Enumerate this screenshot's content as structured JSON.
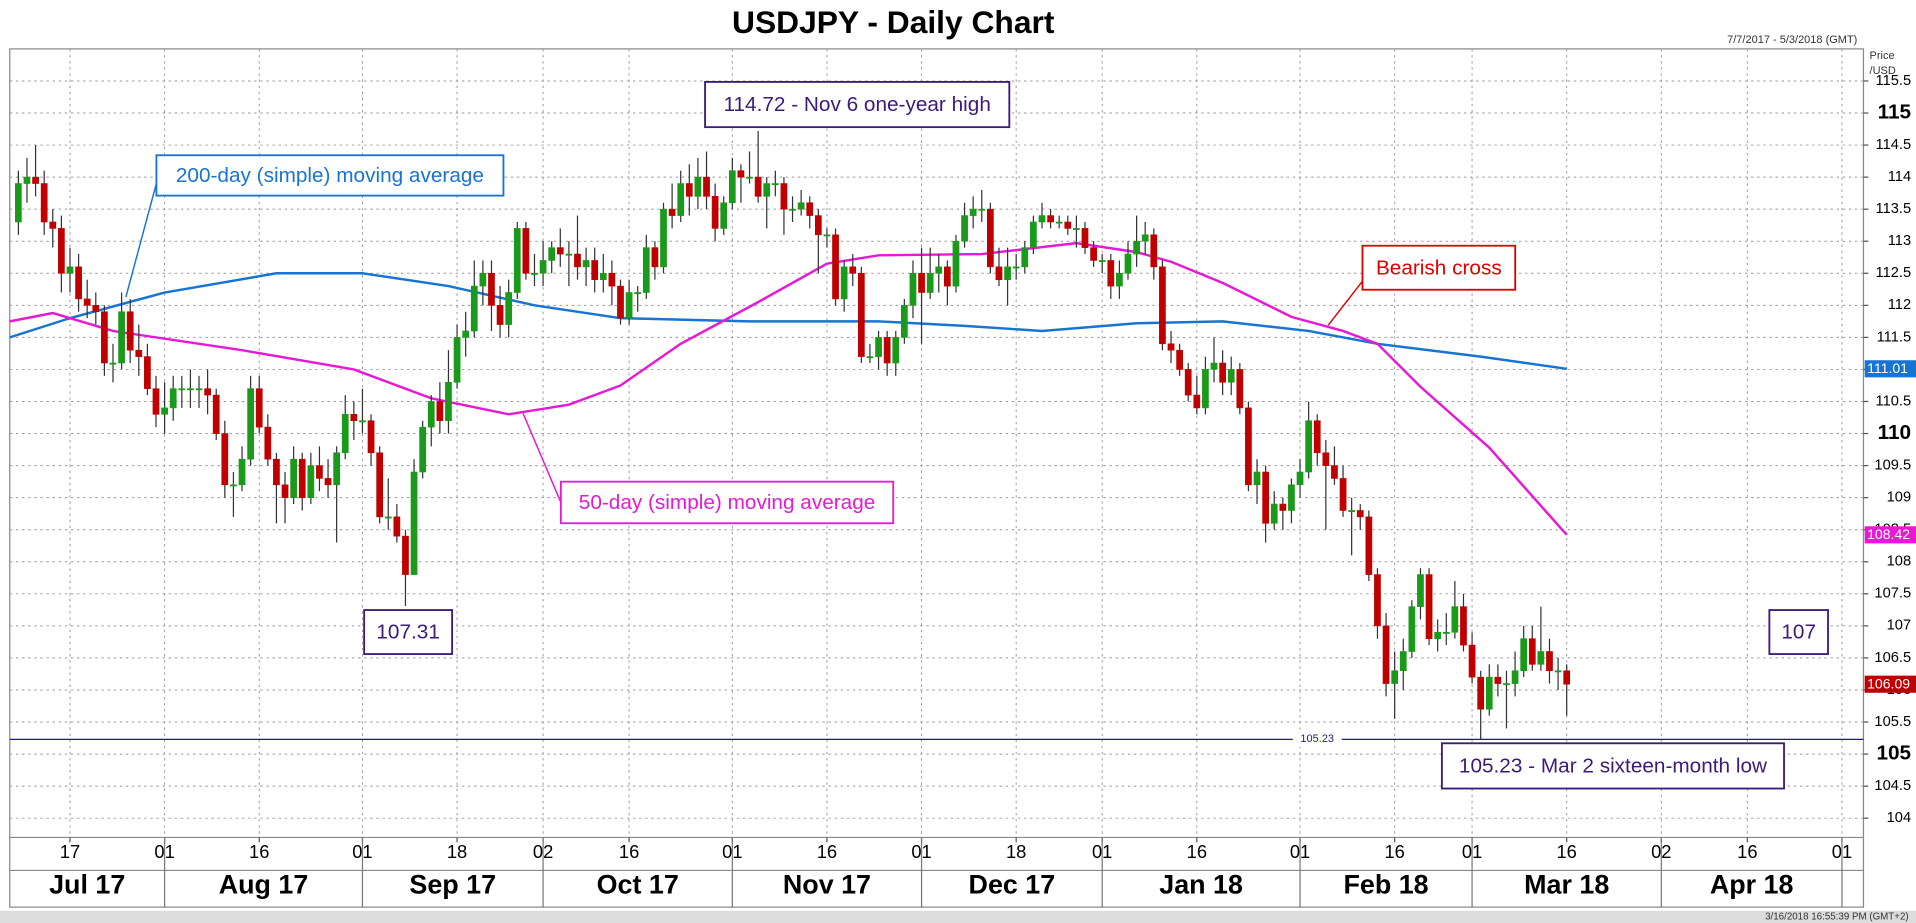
{
  "chart_data": {
    "type": "candlestick",
    "title": "USDJPY - Daily Chart",
    "date_range": "7/7/2017 - 5/3/2018 (GMT)",
    "timestamp": "3/16/2018 16:55:39 PM (GMT+2)",
    "y_axis_label": [
      "Price",
      "/USD"
    ],
    "up_color": "#1a9a1a",
    "down_color": "#c00000",
    "grid": true,
    "xlim": [
      -1,
      214.5
    ],
    "ylim": [
      103.7,
      116
    ],
    "yticks": [
      104,
      104.5,
      105,
      105.5,
      106,
      106.5,
      107,
      107.5,
      108,
      108.5,
      109,
      109.5,
      110,
      110.5,
      111,
      111.5,
      112,
      112.5,
      113,
      113.5,
      114,
      114.5,
      115,
      115.5
    ],
    "xticks": [
      {
        "value": 6,
        "label": "17"
      },
      {
        "value": 17,
        "label": "01"
      },
      {
        "value": 28,
        "label": "16"
      },
      {
        "value": 40,
        "label": "01"
      },
      {
        "value": 51,
        "label": "18"
      },
      {
        "value": 61,
        "label": "02"
      },
      {
        "value": 71,
        "label": "16"
      },
      {
        "value": 83,
        "label": "01"
      },
      {
        "value": 94,
        "label": "16"
      },
      {
        "value": 105,
        "label": "01"
      },
      {
        "value": 116,
        "label": "18"
      },
      {
        "value": 126,
        "label": "01"
      },
      {
        "value": 137,
        "label": "16"
      },
      {
        "value": 149,
        "label": "01"
      },
      {
        "value": 160,
        "label": "16"
      },
      {
        "value": 169,
        "label": "01"
      },
      {
        "value": 180,
        "label": "16"
      },
      {
        "value": 191,
        "label": "02"
      },
      {
        "value": 201,
        "label": "16"
      },
      {
        "value": 212,
        "label": "01"
      }
    ],
    "month_starts": [
      17,
      40,
      61,
      83,
      105,
      126,
      149,
      169,
      191,
      212
    ],
    "months": [
      "Jul 17",
      "Aug 17",
      "Sep 17",
      "Oct 17",
      "Nov 17",
      "Dec 17",
      "Jan 18",
      "Feb 18",
      "Mar 18",
      "Apr 18"
    ],
    "ohlc": [
      [
        113.3,
        114.1,
        113.1,
        113.9
      ],
      [
        113.9,
        114.3,
        113.6,
        114.0
      ],
      [
        114.0,
        114.5,
        113.7,
        113.9
      ],
      [
        113.9,
        114.1,
        113.1,
        113.3
      ],
      [
        113.3,
        113.5,
        112.9,
        113.2
      ],
      [
        113.2,
        113.4,
        112.2,
        112.5
      ],
      [
        112.5,
        112.9,
        112.2,
        112.6
      ],
      [
        112.6,
        112.8,
        111.9,
        112.1
      ],
      [
        112.1,
        112.4,
        111.8,
        112.0
      ],
      [
        112.0,
        112.2,
        111.7,
        111.9
      ],
      [
        111.9,
        112.0,
        110.9,
        111.1
      ],
      [
        111.1,
        111.4,
        110.8,
        111.1
      ],
      [
        111.1,
        112.2,
        111.0,
        111.9
      ],
      [
        111.9,
        112.1,
        111.1,
        111.3
      ],
      [
        111.3,
        111.7,
        110.9,
        111.2
      ],
      [
        111.2,
        111.4,
        110.6,
        110.7
      ],
      [
        110.7,
        110.9,
        110.1,
        110.3
      ],
      [
        110.3,
        110.8,
        110.0,
        110.4
      ],
      [
        110.4,
        110.9,
        110.2,
        110.7
      ],
      [
        110.7,
        110.9,
        110.4,
        110.7
      ],
      [
        110.7,
        111.0,
        110.4,
        110.7
      ],
      [
        110.7,
        110.9,
        110.4,
        110.7
      ],
      [
        110.7,
        111.0,
        110.3,
        110.6
      ],
      [
        110.6,
        110.7,
        109.9,
        110.0
      ],
      [
        110.0,
        110.2,
        109.0,
        109.2
      ],
      [
        109.2,
        109.4,
        108.7,
        109.2
      ],
      [
        109.2,
        109.8,
        109.1,
        109.6
      ],
      [
        109.6,
        110.9,
        109.5,
        110.7
      ],
      [
        110.7,
        110.9,
        110.0,
        110.1
      ],
      [
        110.1,
        110.3,
        109.5,
        109.6
      ],
      [
        109.6,
        109.7,
        108.6,
        109.2
      ],
      [
        109.2,
        109.4,
        108.6,
        109.0
      ],
      [
        109.0,
        109.8,
        108.9,
        109.6
      ],
      [
        109.6,
        109.7,
        108.8,
        109.0
      ],
      [
        109.0,
        109.7,
        108.9,
        109.5
      ],
      [
        109.5,
        109.8,
        109.1,
        109.3
      ],
      [
        109.3,
        109.6,
        109.0,
        109.2
      ],
      [
        109.2,
        109.8,
        108.3,
        109.7
      ],
      [
        109.7,
        110.6,
        109.6,
        110.3
      ],
      [
        110.3,
        110.5,
        109.9,
        110.2
      ],
      [
        110.2,
        110.7,
        110.0,
        110.2
      ],
      [
        110.2,
        110.3,
        109.5,
        109.7
      ],
      [
        109.7,
        109.8,
        108.6,
        108.7
      ],
      [
        108.7,
        109.3,
        108.5,
        108.7
      ],
      [
        108.7,
        108.9,
        108.3,
        108.4
      ],
      [
        108.4,
        108.5,
        107.31,
        107.8
      ],
      [
        107.8,
        109.6,
        107.8,
        109.4
      ],
      [
        109.4,
        110.2,
        109.3,
        110.1
      ],
      [
        110.1,
        110.6,
        109.8,
        110.5
      ],
      [
        110.5,
        110.8,
        110.0,
        110.2
      ],
      [
        110.2,
        111.3,
        110.0,
        110.8
      ],
      [
        110.8,
        111.7,
        110.7,
        111.5
      ],
      [
        111.5,
        111.9,
        111.2,
        111.6
      ],
      [
        111.6,
        112.7,
        111.5,
        112.3
      ],
      [
        112.3,
        112.7,
        112.0,
        112.5
      ],
      [
        112.5,
        112.7,
        111.6,
        112.0
      ],
      [
        112.0,
        112.3,
        111.5,
        111.7
      ],
      [
        111.7,
        112.4,
        111.5,
        112.2
      ],
      [
        112.2,
        113.3,
        112.1,
        113.2
      ],
      [
        113.2,
        113.3,
        112.4,
        112.5
      ],
      [
        112.5,
        112.8,
        112.3,
        112.5
      ],
      [
        112.5,
        113.0,
        112.3,
        112.7
      ],
      [
        112.7,
        113.0,
        112.5,
        112.9
      ],
      [
        112.9,
        113.2,
        112.6,
        112.8
      ],
      [
        112.8,
        113.0,
        112.3,
        112.8
      ],
      [
        112.8,
        113.4,
        112.4,
        112.6
      ],
      [
        112.6,
        112.9,
        112.3,
        112.7
      ],
      [
        112.7,
        112.9,
        112.2,
        112.4
      ],
      [
        112.4,
        112.8,
        112.2,
        112.5
      ],
      [
        112.5,
        112.7,
        112.0,
        112.3
      ],
      [
        112.3,
        112.4,
        111.7,
        111.8
      ],
      [
        111.8,
        112.4,
        111.7,
        112.2
      ],
      [
        112.2,
        112.3,
        111.9,
        112.2
      ],
      [
        112.2,
        113.1,
        112.1,
        112.9
      ],
      [
        112.9,
        113.0,
        112.4,
        112.6
      ],
      [
        112.6,
        113.6,
        112.5,
        113.5
      ],
      [
        113.5,
        113.9,
        113.2,
        113.4
      ],
      [
        113.4,
        114.1,
        113.3,
        113.9
      ],
      [
        113.9,
        114.2,
        113.4,
        113.7
      ],
      [
        113.7,
        114.3,
        113.5,
        114.0
      ],
      [
        114.0,
        114.4,
        113.5,
        113.7
      ],
      [
        113.7,
        113.9,
        113.0,
        113.2
      ],
      [
        113.2,
        113.7,
        113.1,
        113.6
      ],
      [
        113.6,
        114.3,
        113.5,
        114.1
      ],
      [
        114.1,
        114.2,
        113.6,
        114.0
      ],
      [
        114.0,
        114.4,
        113.9,
        114.0
      ],
      [
        114.0,
        114.72,
        113.6,
        113.7
      ],
      [
        113.7,
        114.0,
        113.2,
        113.9
      ],
      [
        113.9,
        114.1,
        113.7,
        113.9
      ],
      [
        113.9,
        114.0,
        113.1,
        113.5
      ],
      [
        113.5,
        113.7,
        113.3,
        113.5
      ],
      [
        113.5,
        113.8,
        113.4,
        113.6
      ],
      [
        113.6,
        113.7,
        113.2,
        113.4
      ],
      [
        113.4,
        113.5,
        112.5,
        113.1
      ],
      [
        113.1,
        113.2,
        112.9,
        113.1
      ],
      [
        113.1,
        113.2,
        112.0,
        112.1
      ],
      [
        112.1,
        112.7,
        111.9,
        112.6
      ],
      [
        112.6,
        112.8,
        112.3,
        112.5
      ],
      [
        112.5,
        112.6,
        111.1,
        111.2
      ],
      [
        111.2,
        111.4,
        111.1,
        111.2
      ],
      [
        111.2,
        111.6,
        111.0,
        111.5
      ],
      [
        111.5,
        111.6,
        110.9,
        111.1
      ],
      [
        111.1,
        111.6,
        110.9,
        111.5
      ],
      [
        111.5,
        112.1,
        111.4,
        112.0
      ],
      [
        112.0,
        112.7,
        111.8,
        112.5
      ],
      [
        112.5,
        112.9,
        111.4,
        112.2
      ],
      [
        112.2,
        112.9,
        112.1,
        112.5
      ],
      [
        112.5,
        112.8,
        112.2,
        112.6
      ],
      [
        112.6,
        112.7,
        112.0,
        112.3
      ],
      [
        112.3,
        113.1,
        112.2,
        113.0
      ],
      [
        113.0,
        113.6,
        112.9,
        113.4
      ],
      [
        113.4,
        113.7,
        113.2,
        113.5
      ],
      [
        113.5,
        113.8,
        113.3,
        113.5
      ],
      [
        113.5,
        113.6,
        112.5,
        112.6
      ],
      [
        112.6,
        112.9,
        112.3,
        112.4
      ],
      [
        112.4,
        112.9,
        112.0,
        112.6
      ],
      [
        112.6,
        112.8,
        112.4,
        112.6
      ],
      [
        112.6,
        113.0,
        112.5,
        112.9
      ],
      [
        112.9,
        113.4,
        112.8,
        113.3
      ],
      [
        113.3,
        113.6,
        113.2,
        113.4
      ],
      [
        113.4,
        113.5,
        113.2,
        113.3
      ],
      [
        113.3,
        113.4,
        113.2,
        113.3
      ],
      [
        113.3,
        113.4,
        113.1,
        113.2
      ],
      [
        113.2,
        113.4,
        112.9,
        113.2
      ],
      [
        113.2,
        113.3,
        112.8,
        112.9
      ],
      [
        112.9,
        113.0,
        112.6,
        112.7
      ],
      [
        112.7,
        112.8,
        112.5,
        112.7
      ],
      [
        112.7,
        112.8,
        112.1,
        112.3
      ],
      [
        112.3,
        112.7,
        112.1,
        112.5
      ],
      [
        112.5,
        113.0,
        112.4,
        112.8
      ],
      [
        112.8,
        113.4,
        112.6,
        113.0
      ],
      [
        113.0,
        113.3,
        112.8,
        113.1
      ],
      [
        113.1,
        113.2,
        112.4,
        112.6
      ],
      [
        112.6,
        112.7,
        111.3,
        111.4
      ],
      [
        111.4,
        111.6,
        111.1,
        111.3
      ],
      [
        111.3,
        111.4,
        110.9,
        111.0
      ],
      [
        111.0,
        111.1,
        110.5,
        110.6
      ],
      [
        110.6,
        110.9,
        110.3,
        110.4
      ],
      [
        110.4,
        111.2,
        110.3,
        111.0
      ],
      [
        111.0,
        111.5,
        110.8,
        111.1
      ],
      [
        111.1,
        111.3,
        110.6,
        110.8
      ],
      [
        110.8,
        111.2,
        110.6,
        111.0
      ],
      [
        111.0,
        111.1,
        110.3,
        110.4
      ],
      [
        110.4,
        110.5,
        109.1,
        109.2
      ],
      [
        109.2,
        109.6,
        108.9,
        109.4
      ],
      [
        109.4,
        109.5,
        108.3,
        108.6
      ],
      [
        108.6,
        109.1,
        108.5,
        108.9
      ],
      [
        108.9,
        109.0,
        108.5,
        108.8
      ],
      [
        108.8,
        109.3,
        108.6,
        109.2
      ],
      [
        109.2,
        109.6,
        109.0,
        109.4
      ],
      [
        109.4,
        110.5,
        109.3,
        110.2
      ],
      [
        110.2,
        110.3,
        109.5,
        109.7
      ],
      [
        109.7,
        109.9,
        108.5,
        109.5
      ],
      [
        109.5,
        109.8,
        109.2,
        109.3
      ],
      [
        109.3,
        109.5,
        108.7,
        108.8
      ],
      [
        108.8,
        109.0,
        108.1,
        108.8
      ],
      [
        108.8,
        108.9,
        108.5,
        108.7
      ],
      [
        108.7,
        108.8,
        107.7,
        107.8
      ],
      [
        107.8,
        107.9,
        106.8,
        107.0
      ],
      [
        107.0,
        107.2,
        105.9,
        106.1
      ],
      [
        106.1,
        106.6,
        105.55,
        106.3
      ],
      [
        106.3,
        106.8,
        106.0,
        106.6
      ],
      [
        106.6,
        107.4,
        106.5,
        107.3
      ],
      [
        107.3,
        107.9,
        107.1,
        107.8
      ],
      [
        107.8,
        107.9,
        106.7,
        106.8
      ],
      [
        106.8,
        107.1,
        106.6,
        106.9
      ],
      [
        106.9,
        107.2,
        106.7,
        106.9
      ],
      [
        106.9,
        107.7,
        106.8,
        107.3
      ],
      [
        107.3,
        107.5,
        106.6,
        106.7
      ],
      [
        106.7,
        106.9,
        106.1,
        106.2
      ],
      [
        106.2,
        106.3,
        105.23,
        105.7
      ],
      [
        105.7,
        106.4,
        105.6,
        106.2
      ],
      [
        106.2,
        106.4,
        105.9,
        106.1
      ],
      [
        106.1,
        106.3,
        105.4,
        106.1
      ],
      [
        106.1,
        106.6,
        105.9,
        106.3
      ],
      [
        106.3,
        107.0,
        106.2,
        106.8
      ],
      [
        106.8,
        107.0,
        106.3,
        106.4
      ],
      [
        106.4,
        107.3,
        106.3,
        106.6
      ],
      [
        106.6,
        106.8,
        106.1,
        106.3
      ],
      [
        106.3,
        106.5,
        106.0,
        106.3
      ],
      [
        106.3,
        106.4,
        105.6,
        106.09
      ]
    ],
    "series": [
      {
        "name": "200-day (simple) moving average",
        "color": "#1874d2",
        "x": [
          -1,
          6,
          17,
          30,
          40,
          50,
          60,
          70,
          85,
          100,
          110,
          119,
          130,
          140,
          150,
          158,
          170,
          180
        ],
        "values": [
          111.5,
          111.8,
          112.2,
          112.5,
          112.5,
          112.3,
          112.0,
          111.8,
          111.75,
          111.75,
          111.68,
          111.6,
          111.72,
          111.75,
          111.6,
          111.4,
          111.2,
          111.01
        ]
      },
      {
        "name": "50-day (simple) moving average",
        "color": "#e619d6",
        "x": [
          -1,
          4,
          11,
          26,
          39,
          48,
          57,
          64,
          70,
          77,
          86,
          94,
          100,
          112,
          123,
          130,
          134,
          140,
          148,
          154,
          158,
          163,
          171,
          180
        ],
        "values": [
          111.75,
          111.88,
          111.6,
          111.3,
          111.0,
          110.55,
          110.3,
          110.45,
          110.75,
          111.4,
          112.05,
          112.65,
          112.78,
          112.8,
          112.97,
          112.83,
          112.68,
          112.35,
          111.82,
          111.6,
          111.4,
          110.73,
          109.78,
          108.42
        ]
      }
    ],
    "support_line": 105.23,
    "support_color": "#1c1c8c",
    "annotations": [
      {
        "text": "114.72 - Nov 6 one-year high",
        "color": "#3c1a7a"
      },
      {
        "text": "200-day (simple) moving average",
        "color": "#1874d2"
      },
      {
        "text": "Bearish cross",
        "color": "#e00000"
      },
      {
        "text": "50-day (simple) moving average",
        "color": "#e619d6"
      },
      {
        "text": "107.31",
        "color": "#3c1a7a"
      },
      {
        "text": "107",
        "color": "#3c1a7a"
      },
      {
        "text": "105.23 - Mar 2 sixteen-month low",
        "color": "#3c1a7a"
      }
    ]
  }
}
